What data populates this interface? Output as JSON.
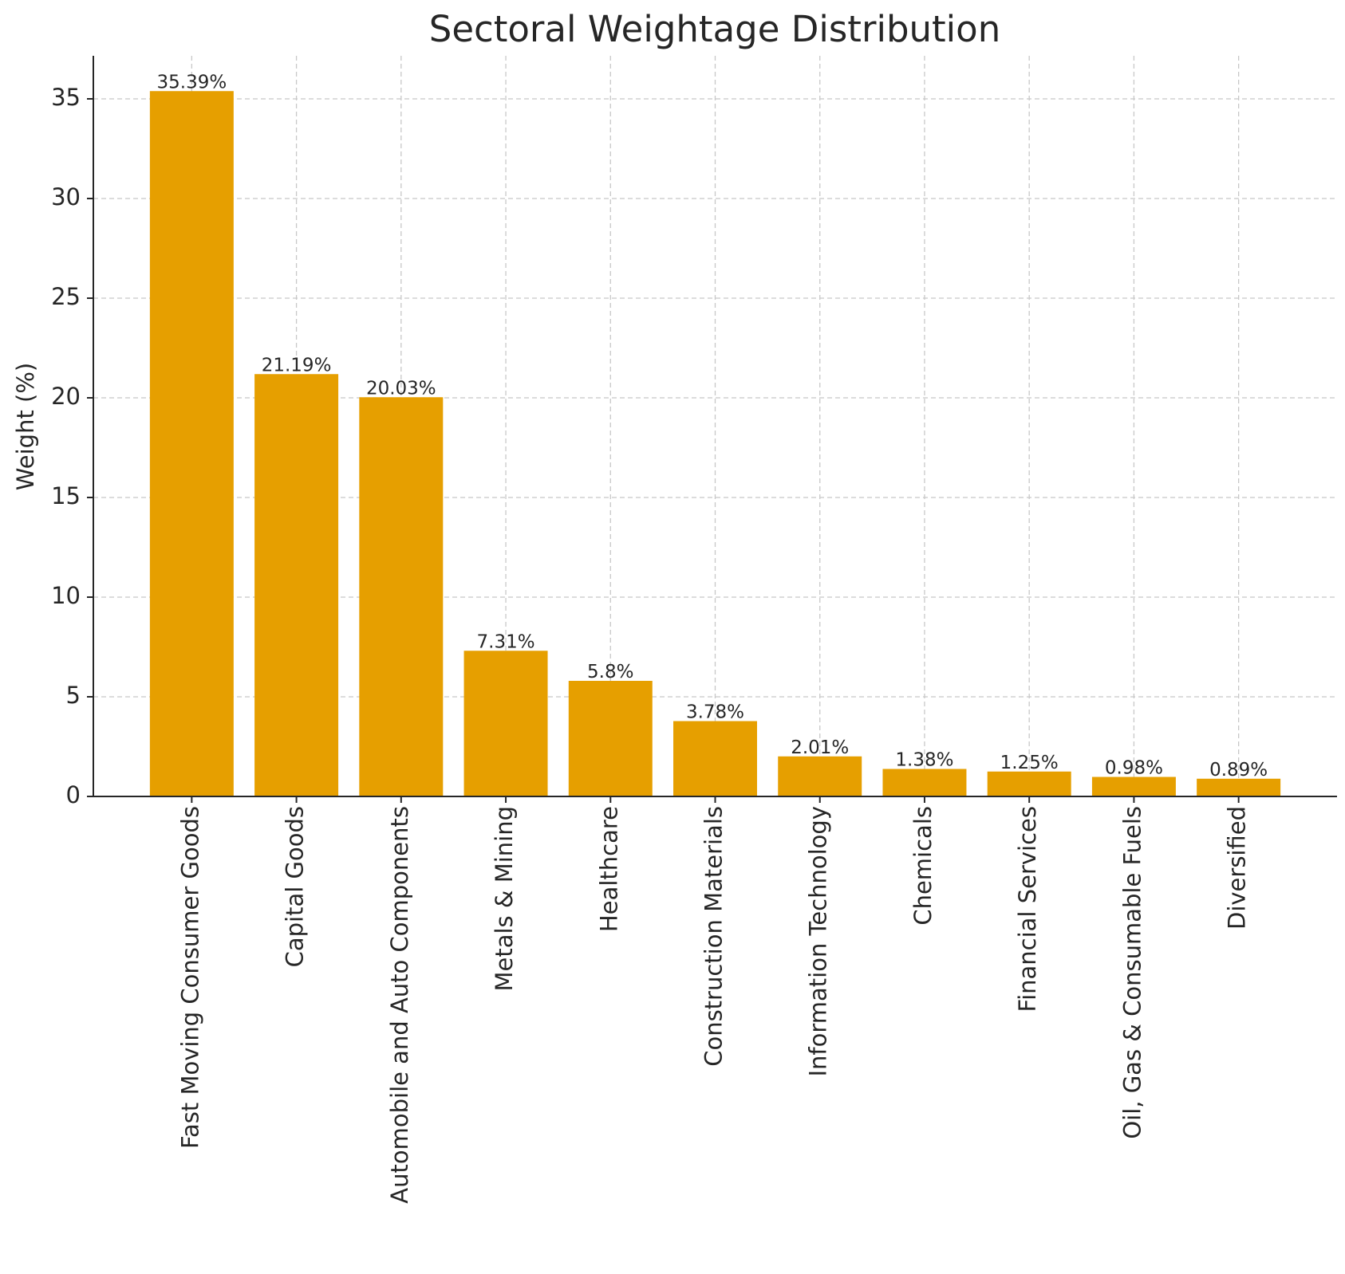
{
  "chart_data": {
    "type": "bar",
    "title": "Sectoral Weightage Distribution",
    "y_label": "Weight (%)",
    "categories": [
      "Fast Moving Consumer Goods",
      "Capital Goods",
      "Automobile and Auto Components",
      "Metals & Mining",
      "Healthcare",
      "Construction Materials",
      "Information Technology",
      "Chemicals",
      "Financial Services",
      "Oil, Gas & Consumable Fuels",
      "Diversified"
    ],
    "values": [
      35.39,
      21.19,
      20.03,
      7.31,
      5.8,
      3.78,
      2.01,
      1.38,
      1.25,
      0.98,
      0.89
    ],
    "value_labels": [
      "35.39%",
      "21.19%",
      "20.03%",
      "7.31%",
      "5.8%",
      "3.78%",
      "2.01%",
      "1.38%",
      "1.25%",
      "0.98%",
      "0.89%"
    ],
    "color": "#e69f00",
    "ylim": [
      0,
      37.16
    ],
    "yticks": [
      0,
      5,
      10,
      15,
      20,
      25,
      30,
      35
    ],
    "grid": true
  }
}
